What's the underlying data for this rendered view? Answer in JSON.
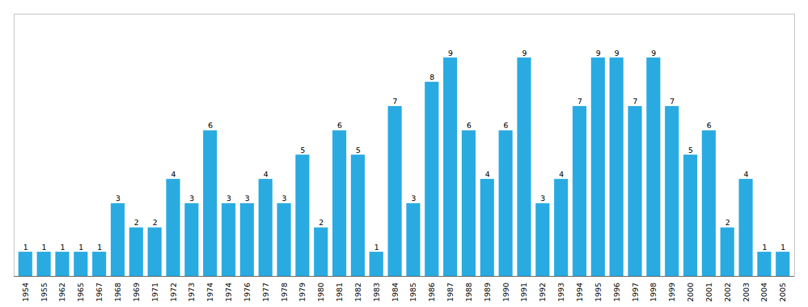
{
  "chart_data": {
    "type": "bar",
    "categories": [
      "1954",
      "1955",
      "1962",
      "1965",
      "1967",
      "1968",
      "1969",
      "1971",
      "1972",
      "1973",
      "1974",
      "1974",
      "1976",
      "1977",
      "1978",
      "1979",
      "1980",
      "1981",
      "1982",
      "1983",
      "1984",
      "1985",
      "1986",
      "1987",
      "1988",
      "1989",
      "1990",
      "1991",
      "1992",
      "1993",
      "1994",
      "1995",
      "1996",
      "1997",
      "1998",
      "1999",
      "2000",
      "2001",
      "2002",
      "2003",
      "2004",
      "2005"
    ],
    "values": [
      1,
      1,
      1,
      1,
      1,
      3,
      2,
      2,
      4,
      3,
      6,
      3,
      3,
      4,
      3,
      5,
      2,
      6,
      5,
      1,
      7,
      3,
      8,
      9,
      6,
      4,
      6,
      9,
      3,
      4,
      7,
      9,
      9,
      7,
      9,
      7,
      5,
      6,
      2,
      4,
      1,
      1
    ],
    "color": "#29ABE2",
    "ylim": [
      0,
      10.8
    ],
    "grid": false,
    "data_labels": true,
    "tick_labels": "x"
  }
}
